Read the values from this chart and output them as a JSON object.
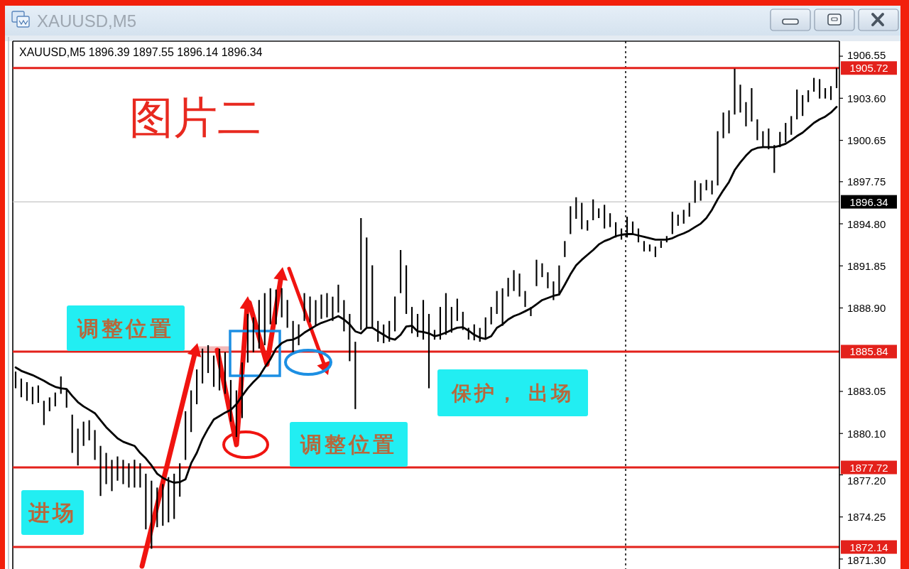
{
  "chart_data": {
    "type": "bar",
    "title": "XAUUSD,M5",
    "subtitle": "XAUUSD,M5 1896.39 1897.55 1896.14 1896.34",
    "categories": [
      null,
      null,
      null,
      null,
      null,
      null,
      null,
      null,
      null,
      null,
      null,
      null,
      null,
      null,
      null,
      null,
      null,
      null,
      null,
      null,
      null,
      null,
      null,
      null,
      null,
      null,
      null,
      null,
      null,
      null,
      null,
      null,
      null,
      null,
      null,
      null,
      null,
      null,
      null,
      null,
      null,
      null,
      null,
      null,
      null,
      null,
      null,
      null,
      null,
      null,
      null,
      null,
      null,
      null,
      null,
      null,
      null,
      null,
      null,
      null,
      null,
      null,
      null,
      null,
      null,
      null,
      null,
      null,
      null,
      null,
      null,
      null,
      null,
      null,
      null,
      null,
      null,
      null,
      null,
      null,
      null,
      null,
      null,
      null,
      null,
      null,
      null,
      null,
      null,
      null,
      null,
      null,
      null,
      null,
      null,
      null,
      null,
      null,
      null,
      null,
      null,
      null,
      null,
      null,
      null,
      null,
      null,
      null,
      null,
      null,
      null,
      null,
      null,
      null,
      null,
      null,
      null,
      null,
      null,
      null,
      null,
      null,
      null,
      null,
      null,
      null,
      null,
      null,
      null,
      null,
      null,
      null,
      null,
      null,
      null,
      null,
      null,
      null,
      null,
      null,
      null,
      null,
      null,
      null,
      null,
      null
    ],
    "series": [
      {
        "color": "#000000",
        "base": [
          1883.27,
          1882.64,
          1882.39,
          1882.15,
          1882.25,
          1880.69,
          1881.66,
          1882.0,
          1882.88,
          1881.91,
          1878.74,
          1877.86,
          1879.23,
          1879.62,
          1878.25,
          1875.72,
          1876.55,
          1876.06,
          1876.79,
          1876.55,
          1876.31,
          1876.31,
          1876.31,
          1873.38,
          1872.02,
          1873.53,
          1873.63,
          1873.87,
          1874.11,
          1875.67,
          1878.25,
          1880.2,
          1882.15,
          1883.61,
          1884.34,
          1883.37,
          1883.12,
          1882.88,
          1880.93,
          1879.86,
          1881.18,
          1885.07,
          1885.8,
          1886.05,
          1886.29,
          1887.75,
          1887.75,
          1888.24,
          1887.51,
          1885.8,
          1886.29,
          1887.99,
          1887.9,
          1887.65,
          1888.14,
          1888.24,
          1887.99,
          1888.58,
          1887.26,
          1885.17,
          1881.81,
          1887.36,
          1887.51,
          1887.51,
          1886.53,
          1886.43,
          1886.53,
          1887.26,
          1889.94,
          1888.48,
          1887.12,
          1886.87,
          1886.68,
          1883.27,
          1886.68,
          1886.68,
          1887.02,
          1887.17,
          1887.99,
          1887.36,
          1886.68,
          1886.63,
          1886.53,
          1886.68,
          1887.75,
          1888.48,
          1887.65,
          1889.7,
          1890.09,
          1889.7,
          1888.97,
          1888.33,
          1890.43,
          1891.06,
          1890.28,
          1889.45,
          1889.79,
          1892.47,
          1894.08,
          1895.15,
          1894.42,
          1894.32,
          1895.05,
          1895.2,
          1894.47,
          1894.57,
          1893.84,
          1893.69,
          1893.84,
          1894.08,
          1893.5,
          1892.86,
          1892.86,
          1892.47,
          1893.11,
          1893.5,
          1894.08,
          1894.66,
          1894.81,
          1895.3,
          1896.27,
          1896.42,
          1897.15,
          1896.86,
          1897.49,
          1900.8,
          1901.14,
          1902.46,
          1902.6,
          1901.63,
          1901.97,
          1900.66,
          1900.17,
          1900.02,
          1898.37,
          1900.17,
          1900.51,
          1901.04,
          1902.12,
          1902.36,
          1903.33,
          1904.06,
          1903.58,
          1903.58,
          1903.48,
          1904.31
        ],
        "values": [
          1.17,
          1.31,
          1.31,
          1.22,
          1.22,
          1.7,
          0.97,
          0.97,
          1.22,
          1.31,
          2.68,
          2.58,
          1.7,
          1.41,
          2.09,
          3.51,
          2.19,
          2.19,
          1.7,
          1.7,
          1.7,
          1.95,
          1.7,
          3.9,
          4.77,
          2.78,
          2.92,
          3.17,
          3.17,
          2.34,
          3.41,
          2.92,
          2.44,
          2.44,
          1.95,
          2.19,
          2.92,
          2.92,
          2.92,
          3.26,
          3.9,
          3.41,
          2.44,
          3.41,
          3.65,
          2.53,
          2.44,
          2.05,
          1.95,
          2.19,
          1.46,
          1.95,
          1.8,
          1.8,
          1.7,
          1.7,
          1.7,
          1.95,
          2.19,
          3.31,
          4.72,
          7.84,
          6.33,
          4.38,
          1.46,
          1.31,
          1.46,
          2.44,
          3.02,
          3.41,
          1.85,
          1.61,
          2.78,
          5.21,
          0.68,
          2.29,
          2.92,
          1.8,
          1.56,
          1.27,
          0.83,
          1.12,
          0.97,
          1.56,
          1.22,
          1.61,
          2.63,
          1.31,
          1.46,
          1.61,
          1.12,
          0.63,
          1.85,
          0.97,
          1.12,
          1.31,
          2.09,
          1.12,
          1.95,
          1.51,
          1.85,
          0.73,
          1.46,
          0.68,
          1.66,
          0.97,
          1.07,
          0.78,
          1.46,
          0.88,
          0.97,
          0.73,
          0.49,
          0.73,
          0.49,
          0.44,
          1.56,
          0.78,
          0.97,
          0.97,
          1.56,
          1.22,
          0.73,
          0.97,
          3.8,
          1.8,
          1.61,
          3.21,
          1.95,
          1.7,
          2.34,
          1.46,
          1.12,
          1.46,
          1.95,
          1.07,
          1.36,
          1.31,
          2.09,
          1.46,
          0.83,
          0.97,
          1.36,
          0.73,
          0.97,
          1.41
        ]
      },
      {
        "type": "line",
        "color": "#000000",
        "values": [
          1884.73,
          1884.49,
          1884.34,
          1884.19,
          1884.0,
          1883.8,
          1883.56,
          1883.37,
          1883.27,
          1883.22,
          1882.73,
          1882.3,
          1882.0,
          1881.76,
          1881.52,
          1881.03,
          1880.54,
          1880.15,
          1879.76,
          1879.52,
          1879.37,
          1879.23,
          1878.74,
          1878.35,
          1877.86,
          1877.28,
          1876.99,
          1876.79,
          1876.65,
          1876.69,
          1876.89,
          1878.01,
          1878.74,
          1879.71,
          1880.44,
          1881.08,
          1881.32,
          1881.56,
          1881.76,
          1882.15,
          1882.73,
          1883.27,
          1883.71,
          1884.1,
          1884.73,
          1885.31,
          1886.05,
          1886.43,
          1886.63,
          1886.68,
          1886.87,
          1887.17,
          1887.41,
          1887.65,
          1887.85,
          1887.99,
          1888.14,
          1888.33,
          1888.09,
          1887.75,
          1887.26,
          1887.12,
          1887.51,
          1887.51,
          1887.26,
          1887.02,
          1886.78,
          1886.68,
          1887.02,
          1887.6,
          1887.65,
          1887.26,
          1887.21,
          1887.12,
          1886.92,
          1887.02,
          1887.17,
          1887.36,
          1887.51,
          1887.55,
          1887.31,
          1887.02,
          1886.82,
          1886.73,
          1886.92,
          1887.51,
          1887.75,
          1888.09,
          1888.33,
          1888.48,
          1888.67,
          1888.87,
          1889.16,
          1889.45,
          1889.6,
          1889.75,
          1889.84,
          1890.53,
          1891.26,
          1891.89,
          1892.28,
          1892.62,
          1892.96,
          1893.35,
          1893.59,
          1893.74,
          1893.93,
          1894.03,
          1894.08,
          1894.08,
          1893.98,
          1893.89,
          1893.79,
          1893.69,
          1893.69,
          1893.69,
          1893.79,
          1893.98,
          1894.13,
          1894.32,
          1894.57,
          1894.81,
          1895.2,
          1895.79,
          1896.52,
          1897.15,
          1897.73,
          1898.56,
          1899.1,
          1899.58,
          1899.97,
          1900.12,
          1900.17,
          1900.17,
          1900.17,
          1900.27,
          1900.41,
          1900.66,
          1900.95,
          1901.19,
          1901.53,
          1901.87,
          1902.12,
          1902.31,
          1902.6,
          1902.99
        ]
      }
    ],
    "ylim": [
      1870.6,
      1907.6
    ],
    "yticks": [
      1906.55,
      {
        "value": 1903.6,
        "label": "1903.60"
      },
      1900.65,
      1897.75,
      {
        "value": 1894.8,
        "label": "1894.80"
      },
      1891.85,
      {
        "value": 1888.9,
        "label": "1888.90"
      },
      1883.05,
      {
        "value": 1880.1,
        "label": "1880.10"
      },
      {
        "value": 1877.2,
        "label": "1877.20"
      },
      1874.25,
      {
        "value": 1871.3,
        "label": "1871.30"
      }
    ],
    "ref_lines": [
      {
        "axis": "y",
        "value": 1905.72,
        "label": "1905.72",
        "color": "#e3211b"
      },
      {
        "axis": "y",
        "value": 1896.34,
        "label": "1896.34",
        "color": "#c4c4c4"
      },
      {
        "axis": "y",
        "value": 1885.84,
        "label": "1885.84",
        "color": "#e3211b"
      },
      {
        "axis": "y",
        "value": 1877.72,
        "label": "1877.72",
        "color": "#e3211b"
      },
      {
        "axis": "y",
        "value": 1872.14,
        "label": "1872.14",
        "color": "#e3211b"
      }
    ],
    "annotations": [
      "图片二",
      "调整位置",
      "进场",
      "调整位置",
      "保护， 出场"
    ],
    "tick_labels": "y"
  }
}
